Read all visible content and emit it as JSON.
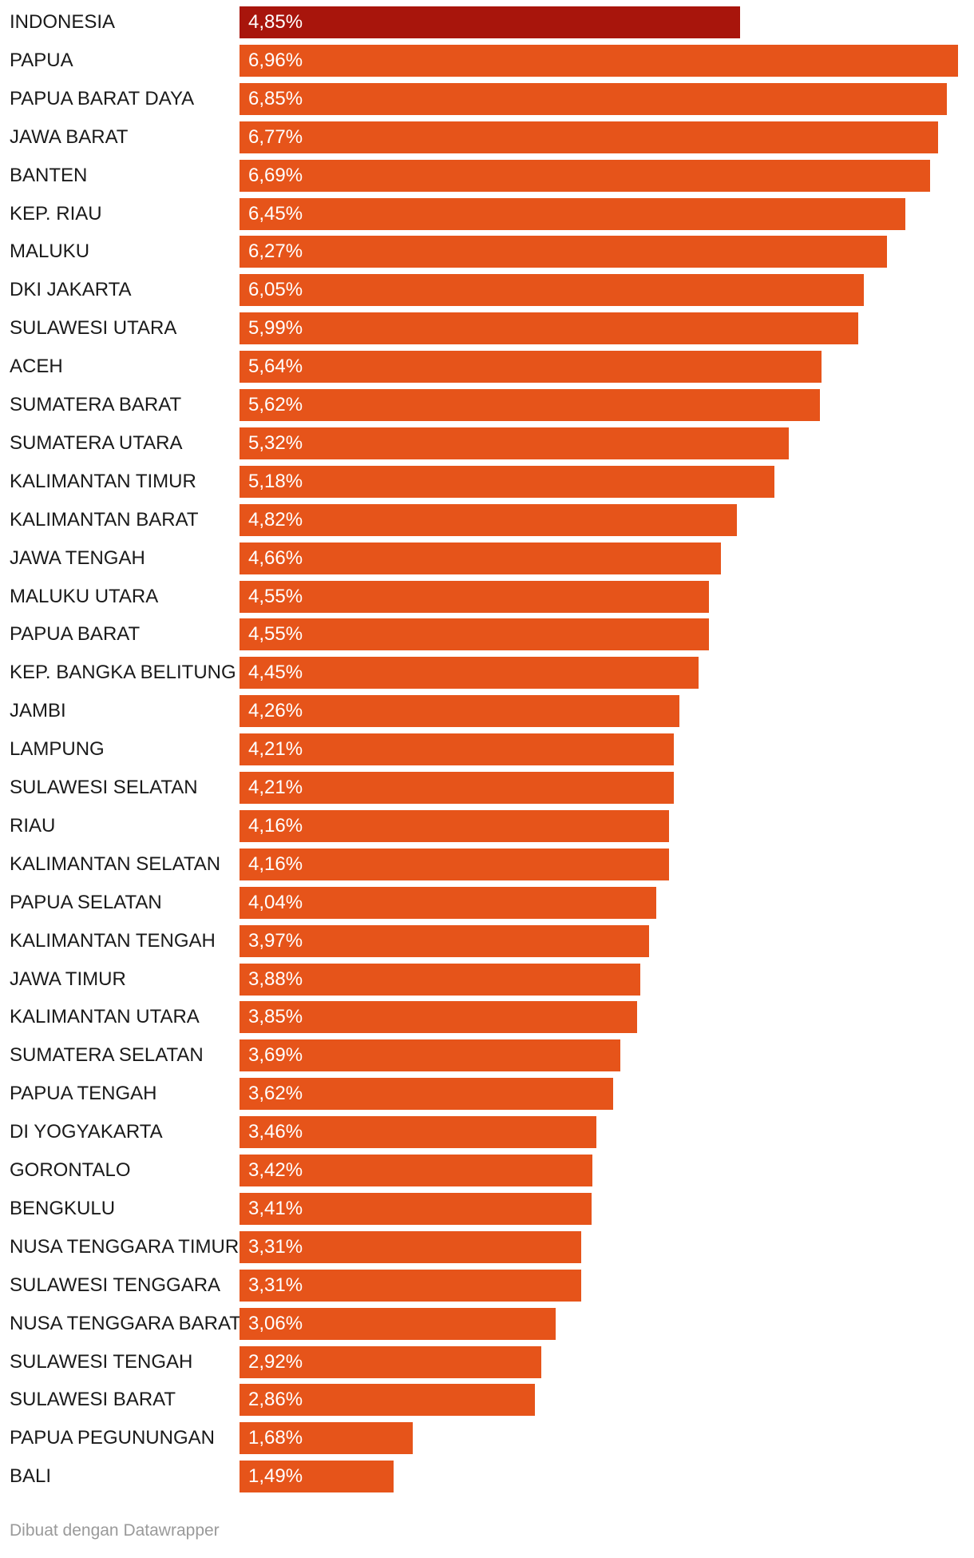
{
  "chart_data": {
    "type": "bar",
    "orientation": "horizontal",
    "title": "",
    "xlabel": "",
    "ylabel": "",
    "value_suffix": "%",
    "decimal_separator": ",",
    "xlim": [
      0,
      6.96
    ],
    "categories": [
      "INDONESIA",
      "PAPUA",
      "PAPUA BARAT DAYA",
      "JAWA BARAT",
      "BANTEN",
      "KEP. RIAU",
      "MALUKU",
      "DKI JAKARTA",
      "SULAWESI UTARA",
      "ACEH",
      "SUMATERA BARAT",
      "SUMATERA UTARA",
      "KALIMANTAN TIMUR",
      "KALIMANTAN BARAT",
      "JAWA TENGAH",
      "MALUKU UTARA",
      "PAPUA BARAT",
      "KEP. BANGKA BELITUNG",
      "JAMBI",
      "LAMPUNG",
      "SULAWESI SELATAN",
      "RIAU",
      "KALIMANTAN SELATAN",
      "PAPUA SELATAN",
      "KALIMANTAN TENGAH",
      "JAWA TIMUR",
      "KALIMANTAN UTARA",
      "SUMATERA SELATAN",
      "PAPUA TENGAH",
      "DI YOGYAKARTA",
      "GORONTALO",
      "BENGKULU",
      "NUSA TENGGARA TIMUR",
      "SULAWESI TENGGARA",
      "NUSA TENGGARA BARAT",
      "SULAWESI TENGAH",
      "SULAWESI BARAT",
      "PAPUA PEGUNUNGAN",
      "BALI"
    ],
    "values": [
      4.85,
      6.96,
      6.85,
      6.77,
      6.69,
      6.45,
      6.27,
      6.05,
      5.99,
      5.64,
      5.62,
      5.32,
      5.18,
      4.82,
      4.66,
      4.55,
      4.55,
      4.45,
      4.26,
      4.21,
      4.21,
      4.16,
      4.16,
      4.04,
      3.97,
      3.88,
      3.85,
      3.69,
      3.62,
      3.46,
      3.42,
      3.41,
      3.31,
      3.31,
      3.06,
      2.92,
      2.86,
      1.68,
      1.49
    ],
    "value_labels": [
      "4,85%",
      "6,96%",
      "6,85%",
      "6,77%",
      "6,69%",
      "6,45%",
      "6,27%",
      "6,05%",
      "5,99%",
      "5,64%",
      "5,62%",
      "5,32%",
      "5,18%",
      "4,82%",
      "4,66%",
      "4,55%",
      "4,55%",
      "4,45%",
      "4,26%",
      "4,21%",
      "4,21%",
      "4,16%",
      "4,16%",
      "4,04%",
      "3,97%",
      "3,88%",
      "3,85%",
      "3,69%",
      "3,62%",
      "3,46%",
      "3,42%",
      "3,41%",
      "3,31%",
      "3,31%",
      "3,06%",
      "2,92%",
      "2,86%",
      "1,68%",
      "1,49%"
    ],
    "highlight_category": "INDONESIA",
    "highlight_color": "#a8150c",
    "bar_color": "#e6541a",
    "value_label_color": "#ffffff",
    "grid": false
  },
  "footer": {
    "credit": "Dibuat dengan Datawrapper"
  }
}
